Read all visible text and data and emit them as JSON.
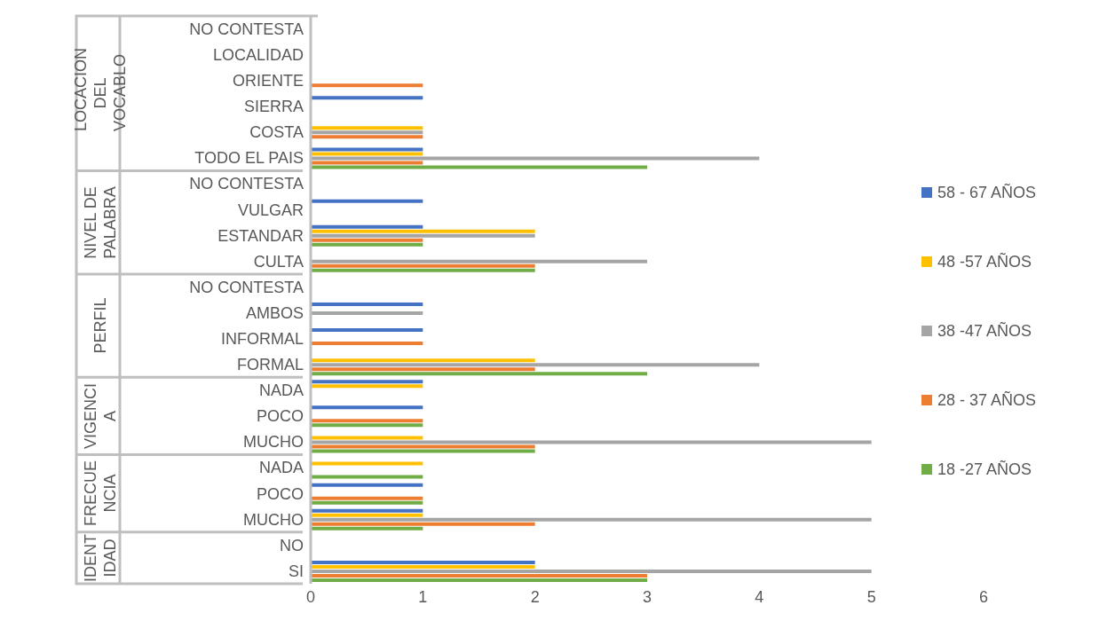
{
  "chart_data": {
    "type": "bar",
    "orientation": "horizontal",
    "categories": [
      "NO CONTESTA",
      "LOCALIDAD",
      "ORIENTE",
      "SIERRA",
      "COSTA",
      "TODO EL PAIS",
      "NO CONTESTA",
      "VULGAR",
      "ESTANDAR",
      "CULTA",
      "NO CONTESTA",
      "AMBOS",
      "INFORMAL",
      "FORMAL",
      "NADA",
      "POCO",
      "MUCHO",
      "NADA",
      "POCO",
      "MUCHO",
      "NO",
      "SI"
    ],
    "series": [
      {
        "name": "58 - 67 AÑOS",
        "color": "#4472c4",
        "values": [
          null,
          null,
          null,
          1,
          null,
          1,
          null,
          1,
          1,
          null,
          null,
          1,
          1,
          null,
          1,
          1,
          null,
          null,
          1,
          1,
          null,
          2
        ]
      },
      {
        "name": "48 -57 AÑOS",
        "color": "#ffc000",
        "values": [
          null,
          null,
          null,
          null,
          1,
          1,
          null,
          null,
          2,
          null,
          null,
          null,
          null,
          2,
          1,
          null,
          1,
          1,
          null,
          1,
          null,
          2
        ]
      },
      {
        "name": "38 -47 AÑOS",
        "color": "#a5a5a5",
        "values": [
          null,
          null,
          null,
          null,
          1,
          4,
          null,
          null,
          2,
          3,
          null,
          1,
          null,
          4,
          null,
          null,
          5,
          null,
          null,
          5,
          null,
          5
        ]
      },
      {
        "name": "28 - 37 AÑOS",
        "color": "#ed7d31",
        "values": [
          null,
          null,
          1,
          null,
          1,
          1,
          null,
          null,
          1,
          2,
          null,
          null,
          1,
          2,
          null,
          1,
          2,
          null,
          1,
          2,
          null,
          3
        ]
      },
      {
        "name": "18 -27 AÑOS",
        "color": "#70ad47",
        "values": [
          null,
          null,
          null,
          null,
          null,
          3,
          null,
          null,
          1,
          2,
          null,
          null,
          null,
          3,
          null,
          1,
          2,
          1,
          1,
          1,
          null,
          3
        ]
      }
    ],
    "annotations": [
      "LOCACION DEL VOCABLO",
      "NIVEL DE PALABRA",
      "PERFIL",
      "VIGENCIA",
      "FRECUENCIA",
      "IDENTIDAD"
    ],
    "xlim": [
      0,
      6
    ],
    "xticks": [
      0,
      1,
      2,
      3,
      4,
      5,
      6
    ],
    "grid": false,
    "legend": "right"
  }
}
